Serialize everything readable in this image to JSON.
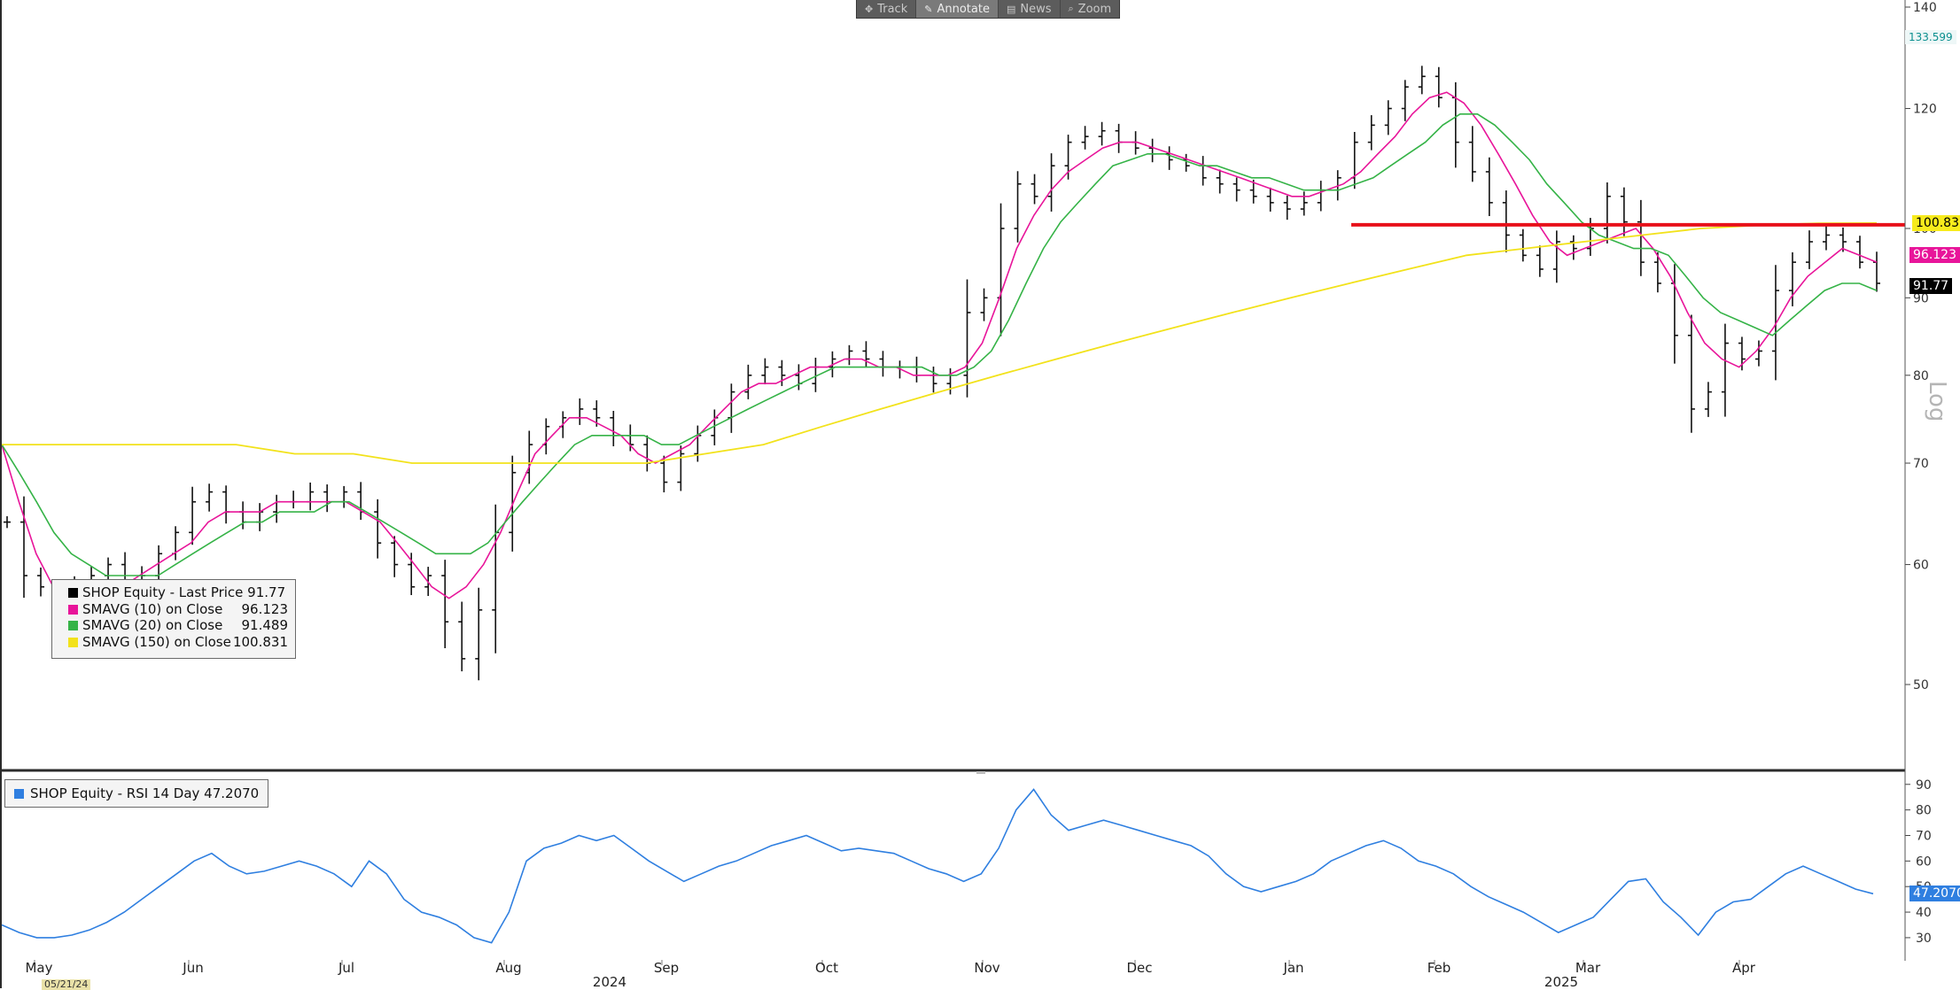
{
  "toolbar": {
    "track": "Track",
    "annotate": "Annotate",
    "news": "News",
    "zoom": "Zoom"
  },
  "legend": {
    "rows": [
      {
        "label": "SHOP Equity  - Last Price 91.77",
        "value": "",
        "color": "#000000"
      },
      {
        "label": "SMAVG (10)  on Close",
        "value": "96.123",
        "color": "#e8159a"
      },
      {
        "label": "SMAVG (20)  on Close",
        "value": "91.489",
        "color": "#35b347"
      },
      {
        "label": "SMAVG (150)  on Close",
        "value": "100.831",
        "color": "#f2e21b"
      }
    ]
  },
  "rsi_legend": {
    "label": "SHOP Equity  - RSI 14 Day 47.2070",
    "color": "#2f7fe0"
  },
  "price_tags": {
    "top": "133.599",
    "sma150": "100.831",
    "sma10": "96.123",
    "last": "91.77",
    "rsi": "47.2070"
  },
  "axis_side_label": "Log",
  "date_badge": "05/21/24",
  "chart_data": [
    {
      "type": "ohlc",
      "title": "SHOP Equity",
      "yscale": "log",
      "ylim": [
        44,
        140
      ],
      "yticks": [
        50,
        60,
        70,
        80,
        90,
        100,
        120,
        140
      ],
      "months": [
        "May",
        "Jun",
        "Jul",
        "Aug",
        "Sep",
        "Oct",
        "Nov",
        "Dec",
        "Jan",
        "Feb",
        "Mar",
        "Apr"
      ],
      "years": [
        "2024",
        "2025"
      ],
      "horizontal_line": {
        "value": 100.831,
        "color": "#e8101a"
      },
      "series": [
        {
          "name": "SHOP Equity  - Last Price",
          "last": 91.77,
          "color": "#000000",
          "closes": [
            64,
            59,
            58,
            57,
            58,
            59,
            60,
            58,
            59,
            61,
            63,
            66,
            67,
            65,
            64,
            65,
            66,
            66,
            67,
            66,
            67,
            65,
            62,
            60,
            58,
            59,
            55,
            52,
            56,
            63,
            69,
            72,
            74,
            75,
            76,
            75,
            73,
            72,
            70,
            68,
            71,
            73,
            75,
            78,
            80,
            81,
            80,
            79,
            81,
            82,
            83,
            82,
            81,
            81,
            80,
            79,
            80,
            88,
            90,
            100,
            107,
            105,
            110,
            114,
            115,
            116,
            114,
            113,
            112,
            111,
            110,
            108,
            107,
            106,
            105,
            104,
            103,
            104,
            106,
            108,
            114,
            117,
            120,
            124,
            126,
            122,
            114,
            109,
            104,
            99,
            96,
            94,
            98,
            97,
            100,
            105,
            101,
            95,
            92,
            85,
            76,
            78,
            84,
            82,
            83,
            91,
            95,
            98,
            99,
            98,
            95,
            92
          ]
        },
        {
          "name": "SMAVG (10)  on Close",
          "value": 96.123,
          "color": "#e8159a",
          "values": [
            72,
            66,
            61,
            58,
            57,
            58,
            58,
            58,
            59,
            60,
            61,
            62,
            64,
            65,
            65,
            65,
            66,
            66,
            66,
            66,
            66,
            65,
            64,
            62,
            60,
            58,
            57,
            58,
            60,
            63,
            67,
            71,
            73,
            75,
            75,
            74,
            73,
            71,
            70,
            71,
            72,
            74,
            76,
            78,
            79,
            79,
            80,
            81,
            81,
            82,
            82,
            81,
            81,
            80,
            80,
            80,
            81,
            84,
            90,
            97,
            102,
            106,
            109,
            111,
            113,
            114,
            114,
            113,
            112,
            111,
            110,
            109,
            108,
            107,
            106,
            105,
            105,
            106,
            107,
            109,
            112,
            115,
            119,
            122,
            123,
            121,
            117,
            112,
            107,
            102,
            98,
            96,
            97,
            98,
            99,
            100,
            97,
            93,
            88,
            84,
            82,
            81,
            83,
            86,
            90,
            93,
            95,
            97,
            96,
            95
          ]
        },
        {
          "name": "SMAVG (20)  on Close",
          "value": 91.489,
          "color": "#35b347",
          "values": [
            72,
            69,
            66,
            63,
            61,
            60,
            59,
            59,
            59,
            59,
            60,
            61,
            62,
            63,
            64,
            64,
            65,
            65,
            65,
            66,
            66,
            65,
            64,
            63,
            62,
            61,
            61,
            61,
            62,
            64,
            66,
            68,
            70,
            72,
            73,
            73,
            73,
            73,
            72,
            72,
            73,
            74,
            75,
            76,
            77,
            78,
            79,
            80,
            81,
            81,
            81,
            81,
            81,
            81,
            80,
            80,
            81,
            83,
            87,
            92,
            97,
            101,
            104,
            107,
            110,
            111,
            112,
            112,
            111,
            110,
            110,
            109,
            108,
            108,
            107,
            106,
            106,
            106,
            107,
            108,
            110,
            112,
            114,
            117,
            119,
            119,
            117,
            114,
            111,
            107,
            104,
            101,
            99,
            98,
            97,
            97,
            96,
            93,
            90,
            88,
            87,
            86,
            85,
            87,
            89,
            91,
            92,
            92,
            91
          ]
        },
        {
          "name": "SMAVG (150)  on Close",
          "value": 100.831,
          "color": "#f2e21b",
          "values": [
            72,
            72,
            72,
            72,
            72,
            71,
            71,
            70,
            70,
            70,
            70,
            70,
            71,
            72,
            74,
            76,
            78,
            80,
            82,
            84,
            86,
            88,
            90,
            92,
            94,
            96,
            97,
            98,
            99,
            100,
            100.5,
            100.8,
            100.831
          ]
        }
      ]
    },
    {
      "type": "line",
      "title": "SHOP Equity  - RSI 14 Day",
      "ylim": [
        22,
        92
      ],
      "yticks": [
        30,
        40,
        50,
        60,
        70,
        80,
        90
      ],
      "series": [
        {
          "name": "SHOP Equity  - RSI 14 Day",
          "last": 47.207,
          "color": "#2f7fe0",
          "values": [
            35,
            32,
            30,
            30,
            31,
            33,
            36,
            40,
            45,
            50,
            55,
            60,
            63,
            58,
            55,
            56,
            58,
            60,
            58,
            55,
            50,
            60,
            55,
            45,
            40,
            38,
            35,
            30,
            28,
            40,
            60,
            65,
            67,
            70,
            68,
            70,
            65,
            60,
            56,
            52,
            55,
            58,
            60,
            63,
            66,
            68,
            70,
            67,
            64,
            65,
            64,
            63,
            60,
            57,
            55,
            52,
            55,
            65,
            80,
            88,
            78,
            72,
            74,
            76,
            74,
            72,
            70,
            68,
            66,
            62,
            55,
            50,
            48,
            50,
            52,
            55,
            60,
            63,
            66,
            68,
            65,
            60,
            58,
            55,
            50,
            46,
            43,
            40,
            36,
            32,
            35,
            38,
            45,
            52,
            53,
            44,
            38,
            31,
            40,
            44,
            45,
            50,
            55,
            58,
            55,
            52,
            49,
            47.207
          ]
        }
      ]
    }
  ]
}
